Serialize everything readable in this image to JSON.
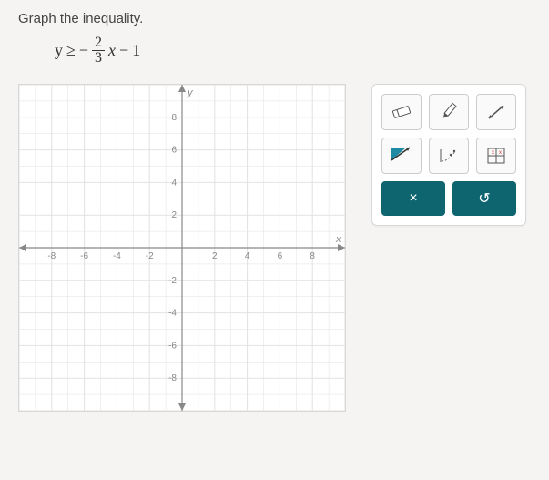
{
  "prompt": "Graph the inequality.",
  "equation": {
    "lhs": "y",
    "rel": "≥",
    "neg": "−",
    "frac_num": "2",
    "frac_den": "3",
    "var": "x",
    "minus": "−",
    "const": "1"
  },
  "graph": {
    "type": "coordinate-grid",
    "xlim": [
      -10,
      10
    ],
    "ylim": [
      -10,
      10
    ],
    "tick_step": 2,
    "x_labels": [
      "-8",
      "-6",
      "-4",
      "-2",
      "2",
      "4",
      "6",
      "8"
    ],
    "y_labels": [
      "8",
      "6",
      "4",
      "2",
      "-2",
      "-4",
      "-6",
      "-8"
    ],
    "axis_labels": {
      "x": "x",
      "y": "y"
    },
    "grid_color": "#e2e2e2",
    "axis_color": "#888888",
    "background_color": "#ffffff",
    "label_color": "#888888",
    "label_fontsize": 10
  },
  "toolbox": {
    "tools": [
      {
        "name": "eraser-icon"
      },
      {
        "name": "pencil-icon"
      },
      {
        "name": "line-icon"
      },
      {
        "name": "shade-region-icon"
      },
      {
        "name": "dashed-curve-icon"
      },
      {
        "name": "grid-settings-icon"
      }
    ],
    "actions": {
      "close": {
        "label": "×",
        "bg": "#0e6570"
      },
      "undo": {
        "label": "↺",
        "bg": "#0e6570"
      }
    },
    "tool_border": "#cccccc",
    "tool_bg": "#fafafa"
  }
}
